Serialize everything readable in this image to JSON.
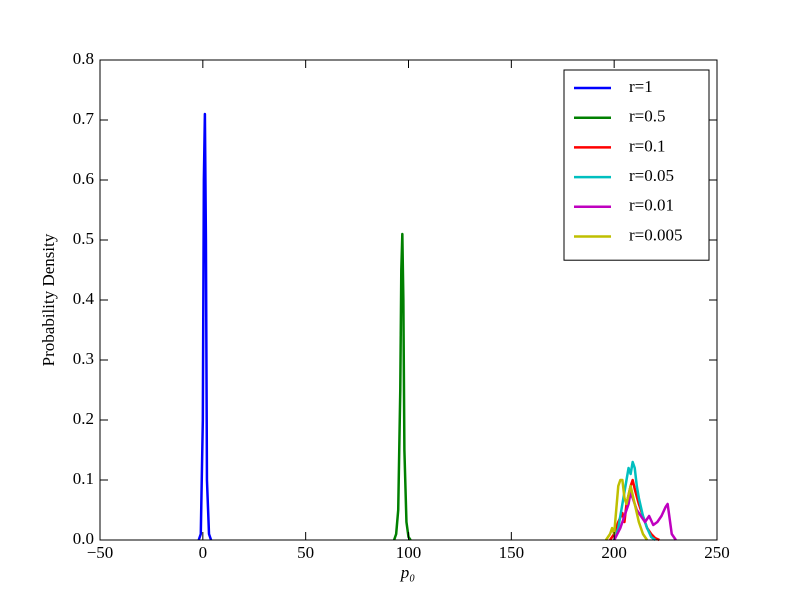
{
  "chart_data": {
    "type": "line",
    "xlabel": "p₀",
    "ylabel": "Probability Density",
    "xlim": [
      -50,
      250
    ],
    "ylim": [
      0,
      0.8
    ],
    "xticks": [
      {
        "value": -50,
        "label": "−50"
      },
      0,
      50,
      100,
      150,
      200,
      250
    ],
    "yticks": [
      {
        "value": 0,
        "label": "0.0"
      },
      0.1,
      0.2,
      0.3,
      0.4,
      0.5,
      0.6,
      0.7,
      0.8
    ],
    "legend": "upper right",
    "series": [
      {
        "name": "r=1",
        "color": "#0000ff",
        "x": [
          -2,
          -1,
          0,
          0.5,
          1,
          1.5,
          2,
          3,
          4
        ],
        "values": [
          0,
          0.01,
          0.2,
          0.6,
          0.71,
          0.5,
          0.1,
          0.01,
          0
        ]
      },
      {
        "name": "r=0.5",
        "color": "#008000",
        "x": [
          93,
          94,
          95,
          96,
          96.5,
          97,
          97.5,
          98,
          99,
          100,
          101
        ],
        "values": [
          0,
          0.01,
          0.05,
          0.25,
          0.45,
          0.51,
          0.4,
          0.15,
          0.03,
          0.005,
          0
        ]
      },
      {
        "name": "r=0.1",
        "color": "#ff0000",
        "x": [
          198,
          200,
          202,
          204,
          205,
          206,
          208,
          209,
          210,
          212,
          214,
          216,
          218,
          220,
          222
        ],
        "values": [
          0,
          0.01,
          0.03,
          0.045,
          0.03,
          0.06,
          0.09,
          0.1,
          0.085,
          0.06,
          0.04,
          0.02,
          0.01,
          0.003,
          0
        ]
      },
      {
        "name": "r=0.05",
        "color": "#00bfbf",
        "x": [
          200,
          202,
          204,
          206,
          207,
          208,
          209,
          210,
          211,
          212,
          214,
          216,
          218,
          220
        ],
        "values": [
          0,
          0.02,
          0.06,
          0.1,
          0.12,
          0.11,
          0.13,
          0.12,
          0.09,
          0.07,
          0.04,
          0.02,
          0.005,
          0
        ]
      },
      {
        "name": "r=0.01",
        "color": "#bf00bf",
        "x": [
          200,
          203,
          205,
          207,
          208,
          209,
          211,
          213,
          215,
          217,
          219,
          221,
          223,
          225,
          226,
          228,
          230
        ],
        "values": [
          0,
          0.02,
          0.04,
          0.06,
          0.08,
          0.07,
          0.05,
          0.04,
          0.03,
          0.04,
          0.025,
          0.03,
          0.04,
          0.055,
          0.06,
          0.01,
          0
        ]
      },
      {
        "name": "r=0.005",
        "color": "#bfbf00",
        "x": [
          196,
          198,
          199,
          200,
          201,
          202,
          203,
          204,
          205,
          206,
          208,
          210,
          212,
          214,
          216
        ],
        "values": [
          0,
          0.01,
          0.02,
          0.01,
          0.05,
          0.09,
          0.1,
          0.1,
          0.07,
          0.06,
          0.09,
          0.06,
          0.03,
          0.01,
          0
        ]
      }
    ]
  }
}
